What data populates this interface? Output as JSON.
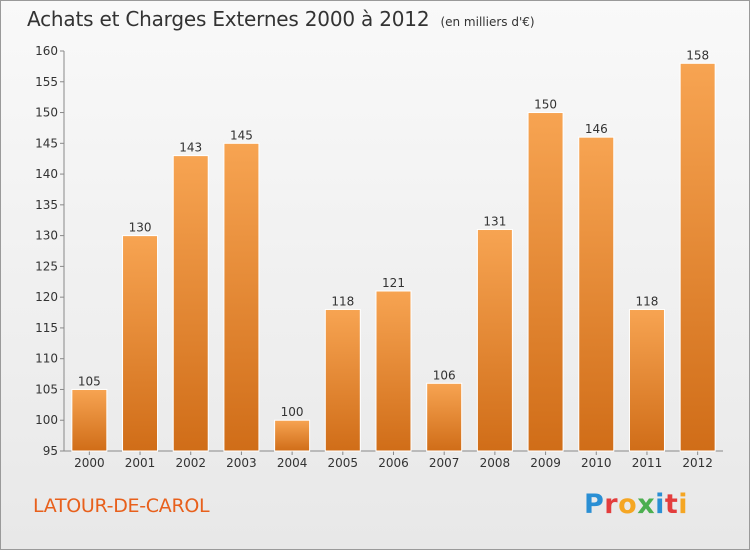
{
  "title": "Achats et Charges Externes 2000 à 2012",
  "unit": "(en milliers d'€)",
  "commune": "LATOUR-DE-CAROL",
  "logo": {
    "text": "Proxiti",
    "letters": [
      {
        "char": "P",
        "color": "#2a8fd4"
      },
      {
        "char": "r",
        "color": "#e33d3d"
      },
      {
        "char": "o",
        "color": "#f5a623"
      },
      {
        "char": "x",
        "color": "#4caf50"
      },
      {
        "char": "i",
        "color": "#2a8fd4"
      },
      {
        "char": "t",
        "color": "#e33d3d"
      },
      {
        "char": "i",
        "color": "#f5a623"
      }
    ]
  },
  "colors": {
    "bar_light": "#f7a452",
    "bar_dark": "#d06d18",
    "commune": "#e8601c"
  },
  "chart_data": {
    "type": "bar",
    "title": "Achats et Charges Externes 2000 à 2012",
    "xlabel": "",
    "ylabel": "",
    "categories": [
      "2000",
      "2001",
      "2002",
      "2003",
      "2004",
      "2005",
      "2006",
      "2007",
      "2008",
      "2009",
      "2010",
      "2011",
      "2012"
    ],
    "values": [
      105,
      130,
      143,
      145,
      100,
      118,
      121,
      106,
      131,
      150,
      146,
      118,
      158
    ],
    "ylim": [
      95,
      160
    ],
    "yticks": [
      95,
      100,
      105,
      110,
      115,
      120,
      125,
      130,
      135,
      140,
      145,
      150,
      155,
      160
    ],
    "grid": false,
    "legend": "none"
  }
}
